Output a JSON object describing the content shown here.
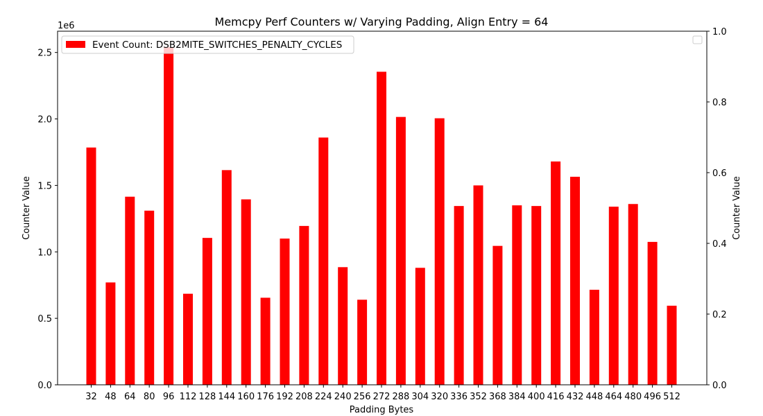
{
  "chart_data": {
    "type": "bar",
    "title": "Memcpy Perf Counters w/ Varying Padding, Align Entry = 64",
    "xlabel": "Padding Bytes",
    "ylabel": "Counter Value",
    "y2label": "Counter Value",
    "y_offset_text": "1e6",
    "categories": [
      "32",
      "48",
      "64",
      "80",
      "96",
      "112",
      "128",
      "144",
      "160",
      "176",
      "192",
      "208",
      "224",
      "240",
      "256",
      "272",
      "288",
      "304",
      "320",
      "336",
      "352",
      "368",
      "384",
      "400",
      "416",
      "432",
      "448",
      "464",
      "480",
      "496",
      "512"
    ],
    "series": [
      {
        "name": "Event Count: DSB2MITE_SWITCHES_PENALTY_CYCLES",
        "color": "#ff0000",
        "values": [
          1785000,
          770000,
          1415000,
          1310000,
          2540000,
          685000,
          1105000,
          1615000,
          1395000,
          655000,
          1100000,
          1195000,
          1860000,
          885000,
          640000,
          2355000,
          2015000,
          880000,
          2005000,
          1345000,
          1500000,
          1045000,
          1350000,
          1345000,
          1680000,
          1565000,
          715000,
          1340000,
          1360000,
          1075000,
          595000
        ]
      }
    ],
    "ylim": [
      0,
      2660000
    ],
    "yticks": [
      0,
      500000,
      1000000,
      1500000,
      2000000,
      2500000
    ],
    "ytick_labels": [
      "0.0",
      "0.5",
      "1.0",
      "1.5",
      "2.0",
      "2.5"
    ],
    "y2lim": [
      0,
      1
    ],
    "y2ticks": [
      0,
      0.2,
      0.4,
      0.6,
      0.8,
      1.0
    ],
    "y2tick_labels": [
      "0.0",
      "0.2",
      "0.4",
      "0.6",
      "0.8",
      "1.0"
    ],
    "legend_position": "top-left",
    "grid": false
  }
}
